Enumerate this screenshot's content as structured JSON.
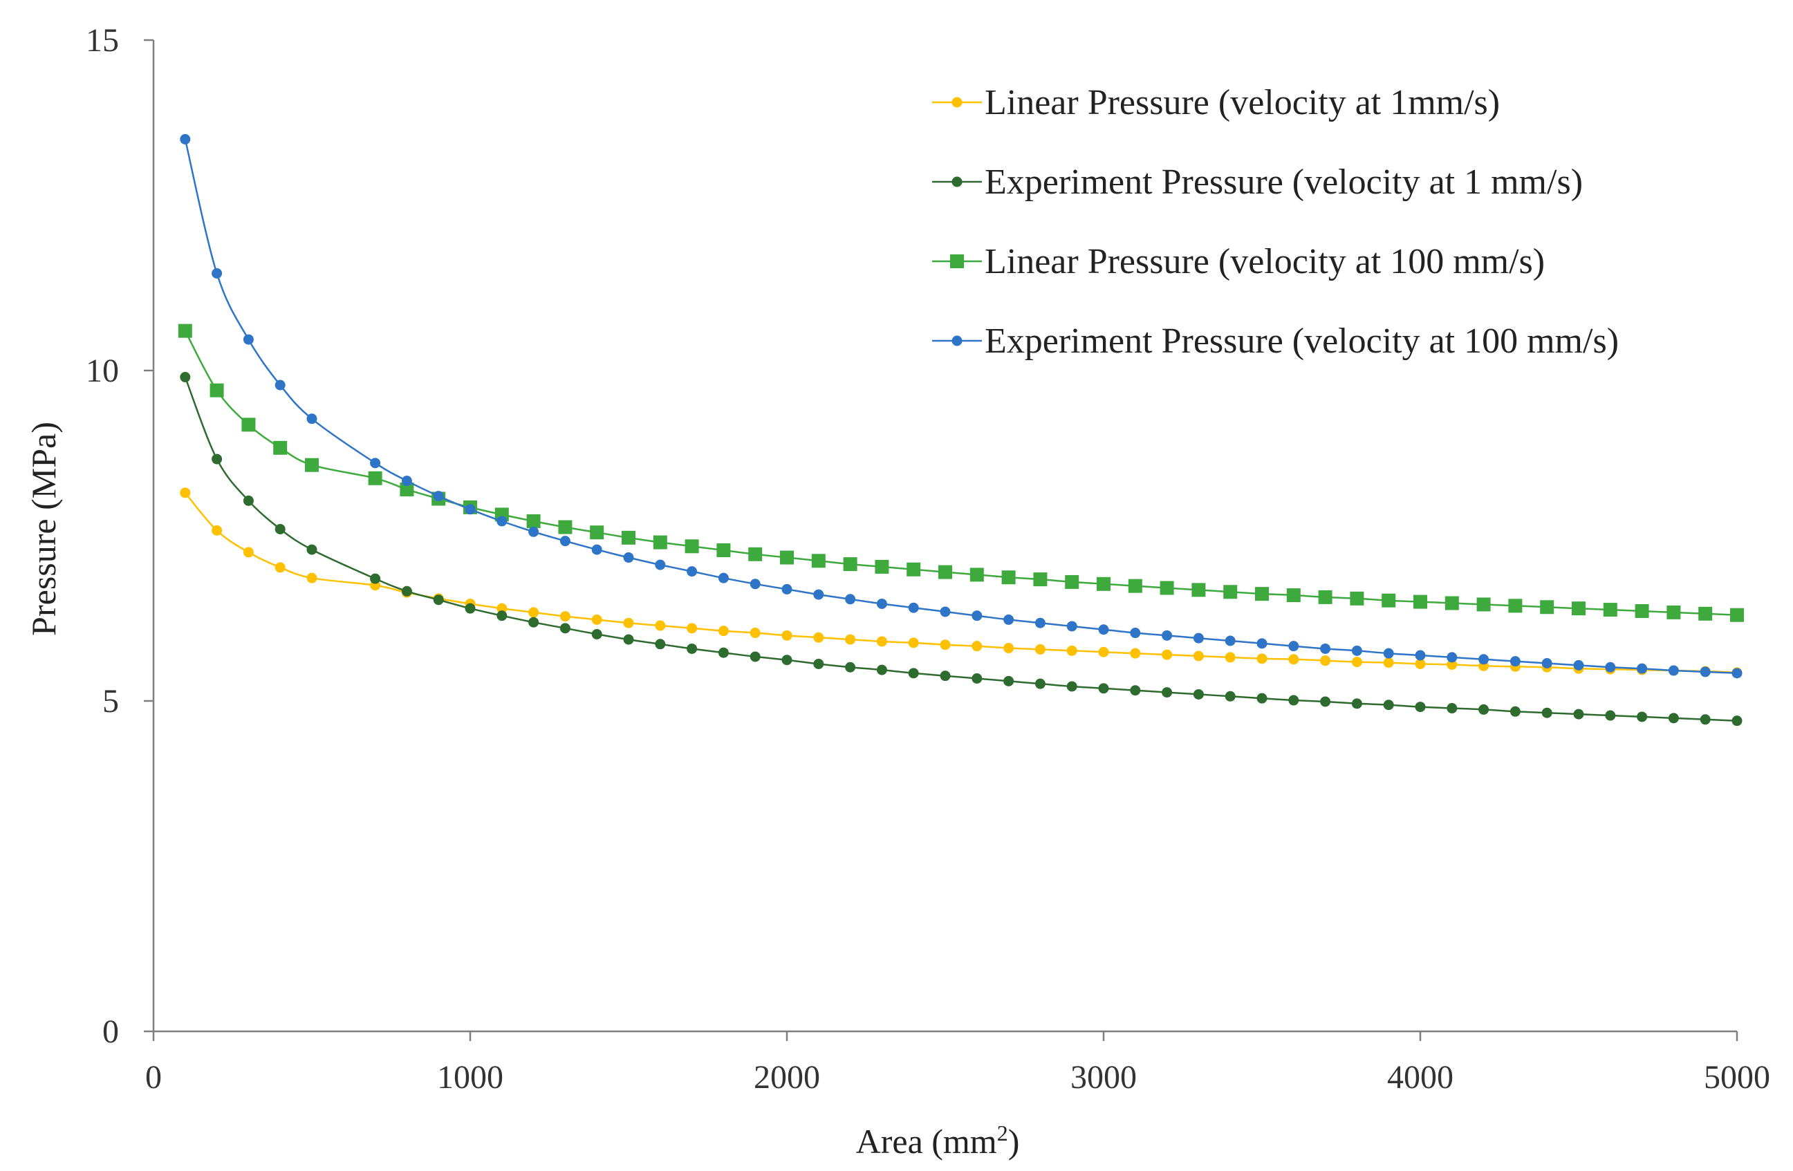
{
  "chart_data": {
    "type": "line",
    "title": "",
    "xlabel": "Area (mm",
    "xlabel_sup": "2",
    "xlabel_end": ")",
    "ylabel": "Pressure (MPa)",
    "xlim": [
      0,
      5000
    ],
    "ylim": [
      0,
      15
    ],
    "xticks": [
      0,
      1000,
      2000,
      3000,
      4000,
      5000
    ],
    "yticks": [
      0,
      5,
      10,
      15
    ],
    "grid": false,
    "legend_position": "top-right",
    "series": [
      {
        "name": "Linear Pressure (velocity at 1mm/s)",
        "color": "#FFC000",
        "marker": "circle",
        "x": [
          100,
          200,
          300,
          400,
          500,
          700,
          800,
          900,
          1000,
          1100,
          1200,
          1300,
          1400,
          1500,
          1600,
          1700,
          1800,
          1900,
          2000,
          2100,
          2200,
          2300,
          2400,
          2500,
          2600,
          2700,
          2800,
          2900,
          3000,
          3100,
          3200,
          3300,
          3400,
          3500,
          3600,
          3700,
          3800,
          3900,
          4000,
          4100,
          4200,
          4300,
          4400,
          4500,
          4600,
          4700,
          4800,
          4900,
          5000
        ],
        "y": [
          8.15,
          7.58,
          7.25,
          7.02,
          6.86,
          6.75,
          6.64,
          6.55,
          6.47,
          6.4,
          6.34,
          6.28,
          6.23,
          6.18,
          6.14,
          6.1,
          6.06,
          6.03,
          5.99,
          5.96,
          5.93,
          5.9,
          5.88,
          5.85,
          5.83,
          5.8,
          5.78,
          5.76,
          5.74,
          5.72,
          5.7,
          5.68,
          5.66,
          5.64,
          5.63,
          5.61,
          5.59,
          5.58,
          5.56,
          5.55,
          5.53,
          5.52,
          5.51,
          5.49,
          5.48,
          5.47,
          5.46,
          5.45,
          5.43
        ]
      },
      {
        "name": "Experiment Pressure (velocity at 1 mm/s)",
        "color": "#2E6B2E",
        "marker": "circle",
        "x": [
          100,
          200,
          300,
          400,
          500,
          700,
          800,
          900,
          1000,
          1100,
          1200,
          1300,
          1400,
          1500,
          1600,
          1700,
          1800,
          1900,
          2000,
          2100,
          2200,
          2300,
          2400,
          2500,
          2600,
          2700,
          2800,
          2900,
          3000,
          3100,
          3200,
          3300,
          3400,
          3500,
          3600,
          3700,
          3800,
          3900,
          4000,
          4100,
          4200,
          4300,
          4400,
          4500,
          4600,
          4700,
          4800,
          4900,
          5000
        ],
        "y": [
          9.9,
          8.66,
          8.03,
          7.6,
          7.29,
          6.85,
          6.66,
          6.53,
          6.4,
          6.29,
          6.19,
          6.1,
          6.01,
          5.93,
          5.86,
          5.79,
          5.73,
          5.67,
          5.62,
          5.56,
          5.51,
          5.47,
          5.42,
          5.38,
          5.34,
          5.3,
          5.26,
          5.22,
          5.19,
          5.16,
          5.13,
          5.1,
          5.07,
          5.04,
          5.01,
          4.99,
          4.96,
          4.94,
          4.91,
          4.89,
          4.87,
          4.84,
          4.82,
          4.8,
          4.78,
          4.76,
          4.74,
          4.72,
          4.7
        ]
      },
      {
        "name": "Linear Pressure (velocity at 100 mm/s)",
        "color": "#3EAA3E",
        "marker": "square",
        "x": [
          100,
          200,
          300,
          400,
          500,
          700,
          800,
          900,
          1000,
          1100,
          1200,
          1300,
          1400,
          1500,
          1600,
          1700,
          1800,
          1900,
          2000,
          2100,
          2200,
          2300,
          2400,
          2500,
          2600,
          2700,
          2800,
          2900,
          3000,
          3100,
          3200,
          3300,
          3400,
          3500,
          3600,
          3700,
          3800,
          3900,
          4000,
          4100,
          4200,
          4300,
          4400,
          4500,
          4600,
          4700,
          4800,
          4900,
          5000
        ],
        "y": [
          10.6,
          9.7,
          9.18,
          8.83,
          8.57,
          8.37,
          8.2,
          8.06,
          7.93,
          7.82,
          7.72,
          7.63,
          7.55,
          7.47,
          7.4,
          7.34,
          7.28,
          7.22,
          7.17,
          7.12,
          7.07,
          7.03,
          6.99,
          6.95,
          6.91,
          6.87,
          6.84,
          6.8,
          6.77,
          6.74,
          6.71,
          6.68,
          6.65,
          6.62,
          6.6,
          6.57,
          6.55,
          6.52,
          6.5,
          6.48,
          6.46,
          6.44,
          6.42,
          6.4,
          6.38,
          6.36,
          6.34,
          6.32,
          6.3
        ]
      },
      {
        "name": "Experiment Pressure (velocity at 100 mm/s)",
        "color": "#2E75C8",
        "marker": "circle",
        "x": [
          100,
          200,
          300,
          400,
          500,
          700,
          800,
          900,
          1000,
          1100,
          1200,
          1300,
          1400,
          1500,
          1600,
          1700,
          1800,
          1900,
          2000,
          2100,
          2200,
          2300,
          2400,
          2500,
          2600,
          2700,
          2800,
          2900,
          3000,
          3100,
          3200,
          3300,
          3400,
          3500,
          3600,
          3700,
          3800,
          3900,
          4000,
          4100,
          4200,
          4300,
          4400,
          4500,
          4600,
          4700,
          4800,
          4900,
          5000
        ],
        "y": [
          13.5,
          11.47,
          10.47,
          9.78,
          9.27,
          8.6,
          8.33,
          8.1,
          7.9,
          7.72,
          7.56,
          7.42,
          7.29,
          7.17,
          7.06,
          6.96,
          6.86,
          6.77,
          6.69,
          6.61,
          6.54,
          6.47,
          6.41,
          6.35,
          6.29,
          6.23,
          6.18,
          6.13,
          6.08,
          6.03,
          5.99,
          5.95,
          5.91,
          5.87,
          5.83,
          5.79,
          5.76,
          5.72,
          5.69,
          5.66,
          5.63,
          5.6,
          5.57,
          5.54,
          5.51,
          5.49,
          5.46,
          5.44,
          5.42
        ]
      }
    ]
  }
}
